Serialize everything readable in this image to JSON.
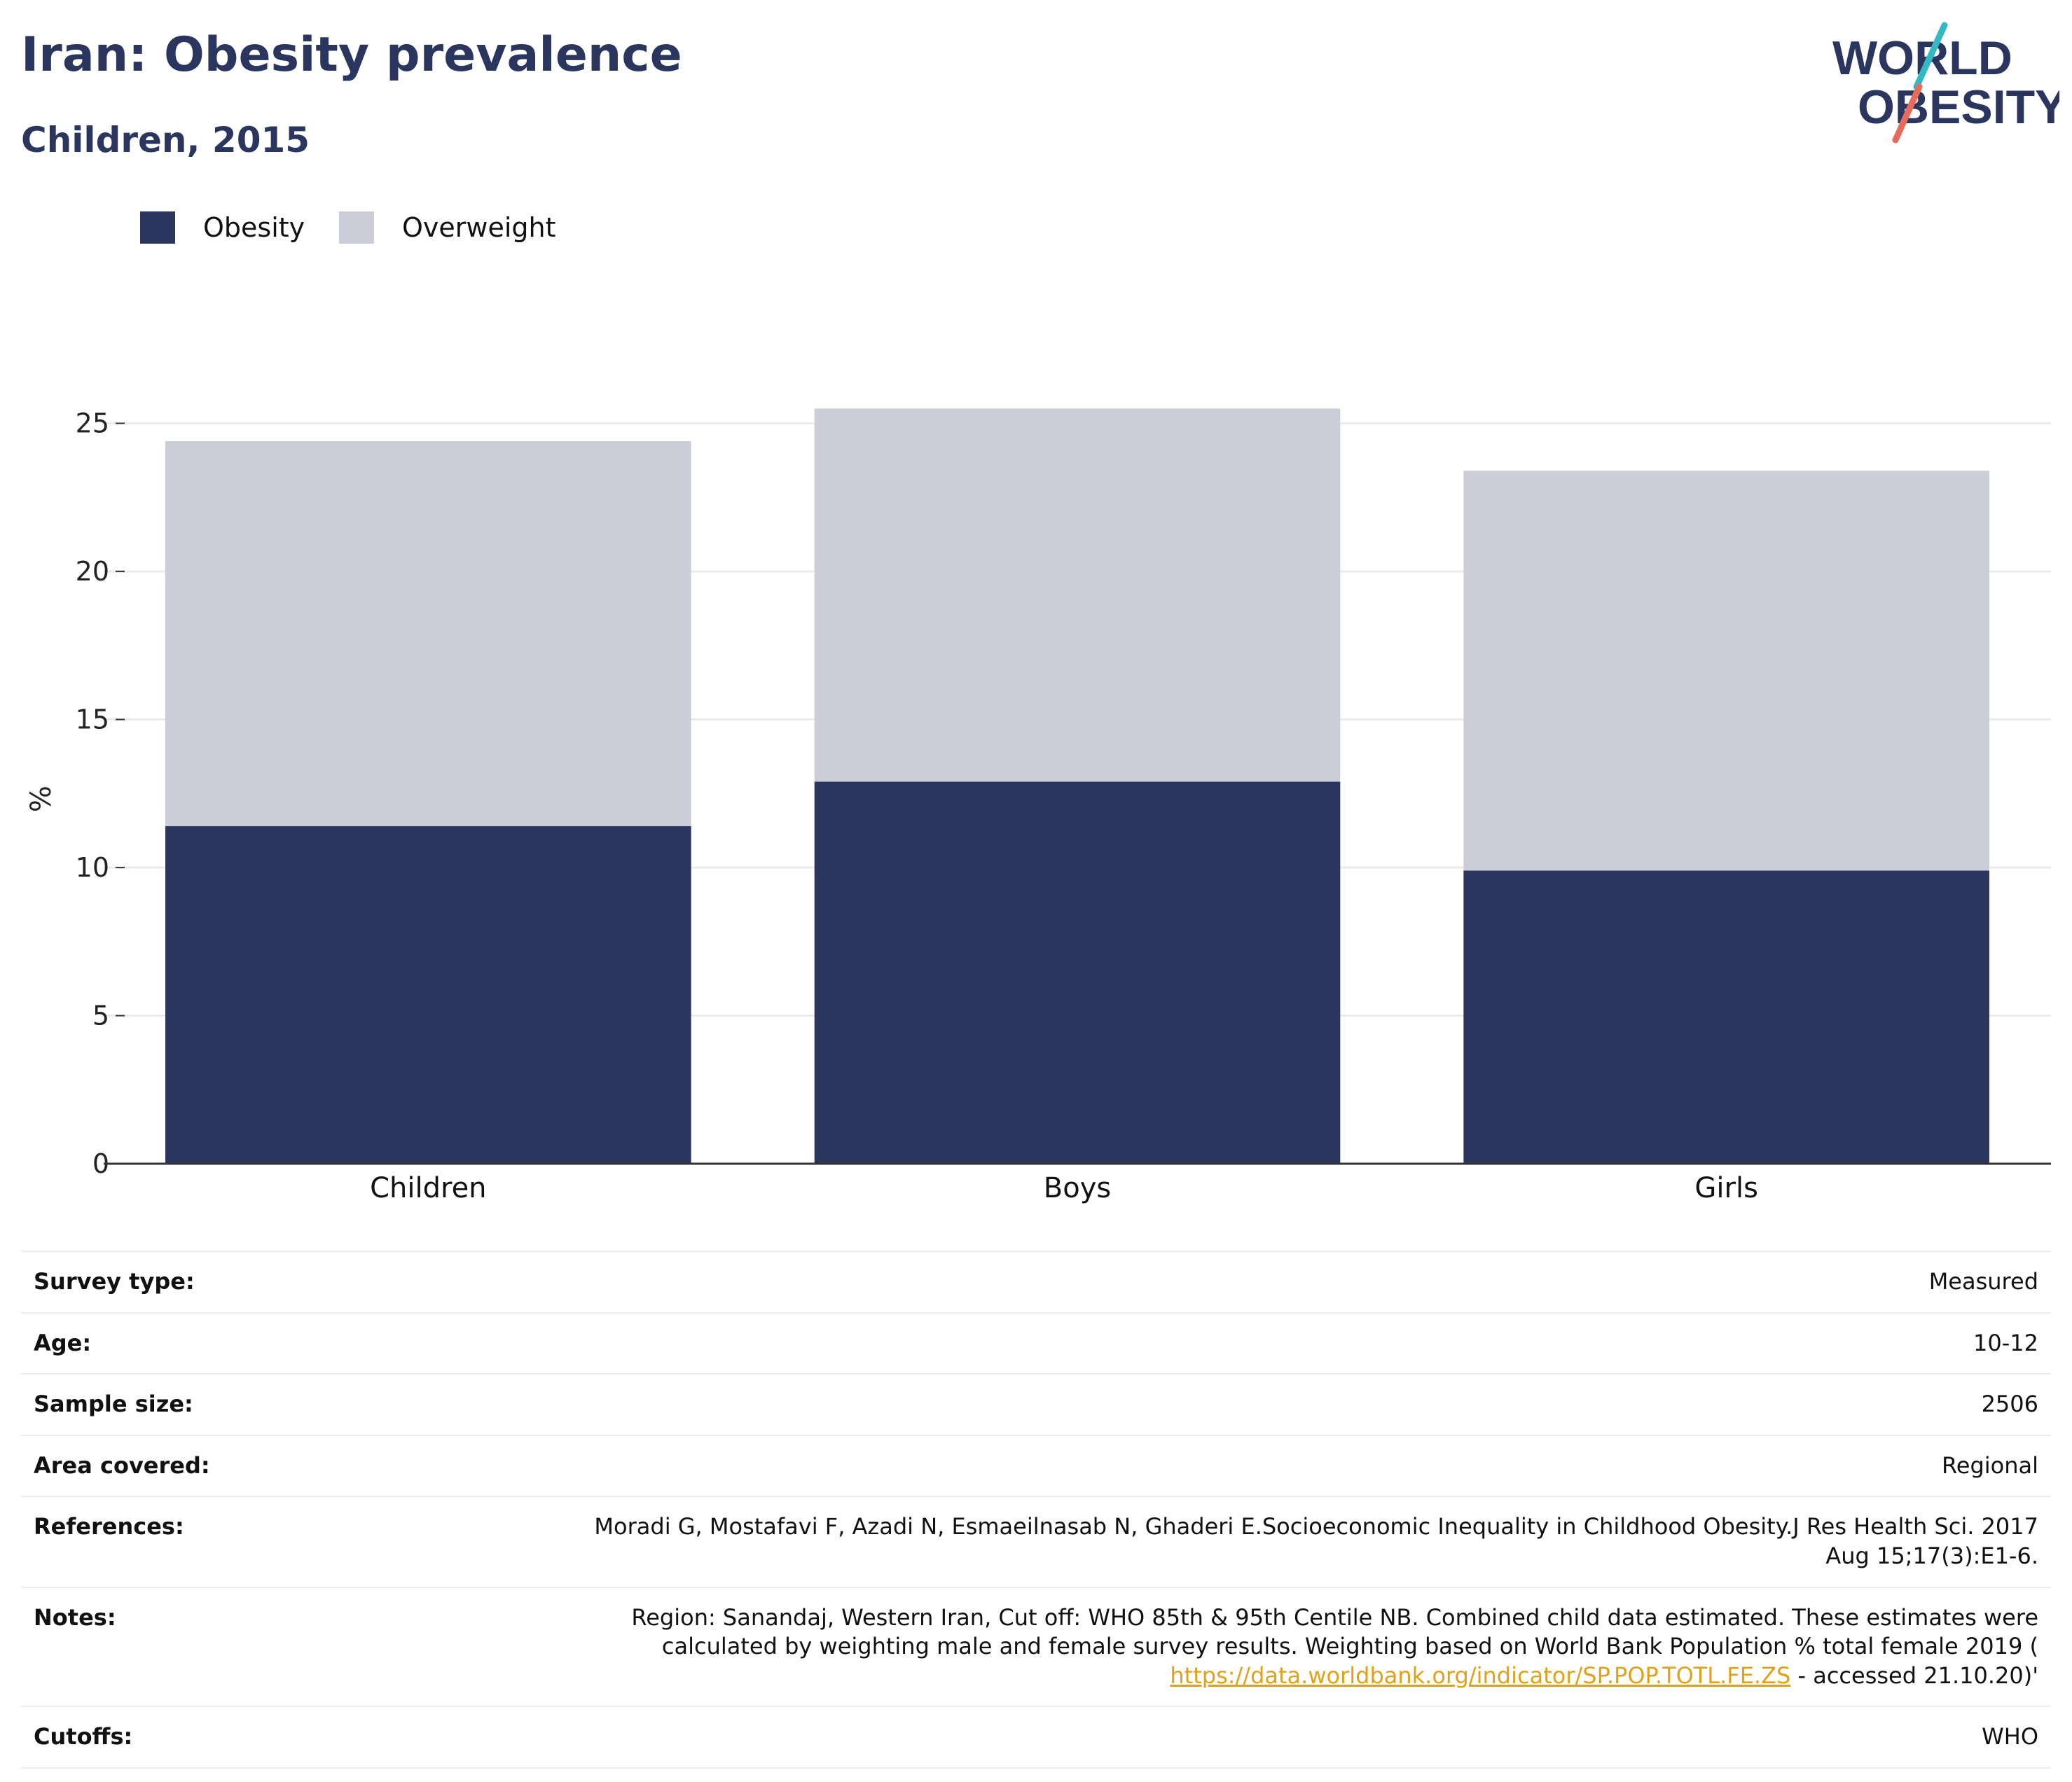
{
  "header": {
    "title": "Iran: Obesity prevalence",
    "subtitle": "Children, 2015"
  },
  "logo": {
    "line1": "WORLD",
    "line2": "OBESITY"
  },
  "colors": {
    "obesity": "#2b365f",
    "overweight": "#cbcdd8",
    "title": "#2b365f",
    "link": "#e0a21b",
    "logo_teal": "#34b9c4",
    "logo_coral": "#e56b5d"
  },
  "chart_data": {
    "type": "bar",
    "stacked": true,
    "categories": [
      "Children",
      "Boys",
      "Girls"
    ],
    "series": [
      {
        "name": "Obesity",
        "values": [
          11.4,
          12.9,
          9.9
        ]
      },
      {
        "name": "Overweight",
        "values": [
          13.0,
          12.6,
          13.5
        ]
      }
    ],
    "title": "Iran: Obesity prevalence",
    "subtitle": "Children, 2015",
    "xlabel": "",
    "ylabel": "%",
    "ylim": [
      0,
      27
    ],
    "yticks": [
      0,
      5,
      10,
      15,
      20,
      25
    ],
    "grid": true,
    "legend_position": "top-left"
  },
  "meta": {
    "survey_type": {
      "label": "Survey type:",
      "value": "Measured"
    },
    "age": {
      "label": "Age:",
      "value": "10-12"
    },
    "sample_size": {
      "label": "Sample size:",
      "value": "2506"
    },
    "area_covered": {
      "label": "Area covered:",
      "value": "Regional"
    },
    "references": {
      "label": "References:",
      "value": "Moradi G, Mostafavi F, Azadi N, Esmaeilnasab N, Ghaderi E.Socioeconomic Inequality in Childhood Obesity.J Res Health Sci. 2017 Aug 15;17(3):E1-6."
    },
    "notes": {
      "label": "Notes:",
      "text": "Region: Sanandaj, Western Iran, Cut off: WHO 85th & 95th Centile NB. Combined child data estimated. These estimates were calculated by weighting male and female survey results. Weighting based on World Bank Population % total female 2019 (",
      "link": "https://data.worldbank.org/indicator/SP.POP.TOTL.FE.ZS",
      "suffix": " - accessed 21.10.20)'"
    },
    "cutoffs": {
      "label": "Cutoffs:",
      "value": "WHO"
    }
  }
}
